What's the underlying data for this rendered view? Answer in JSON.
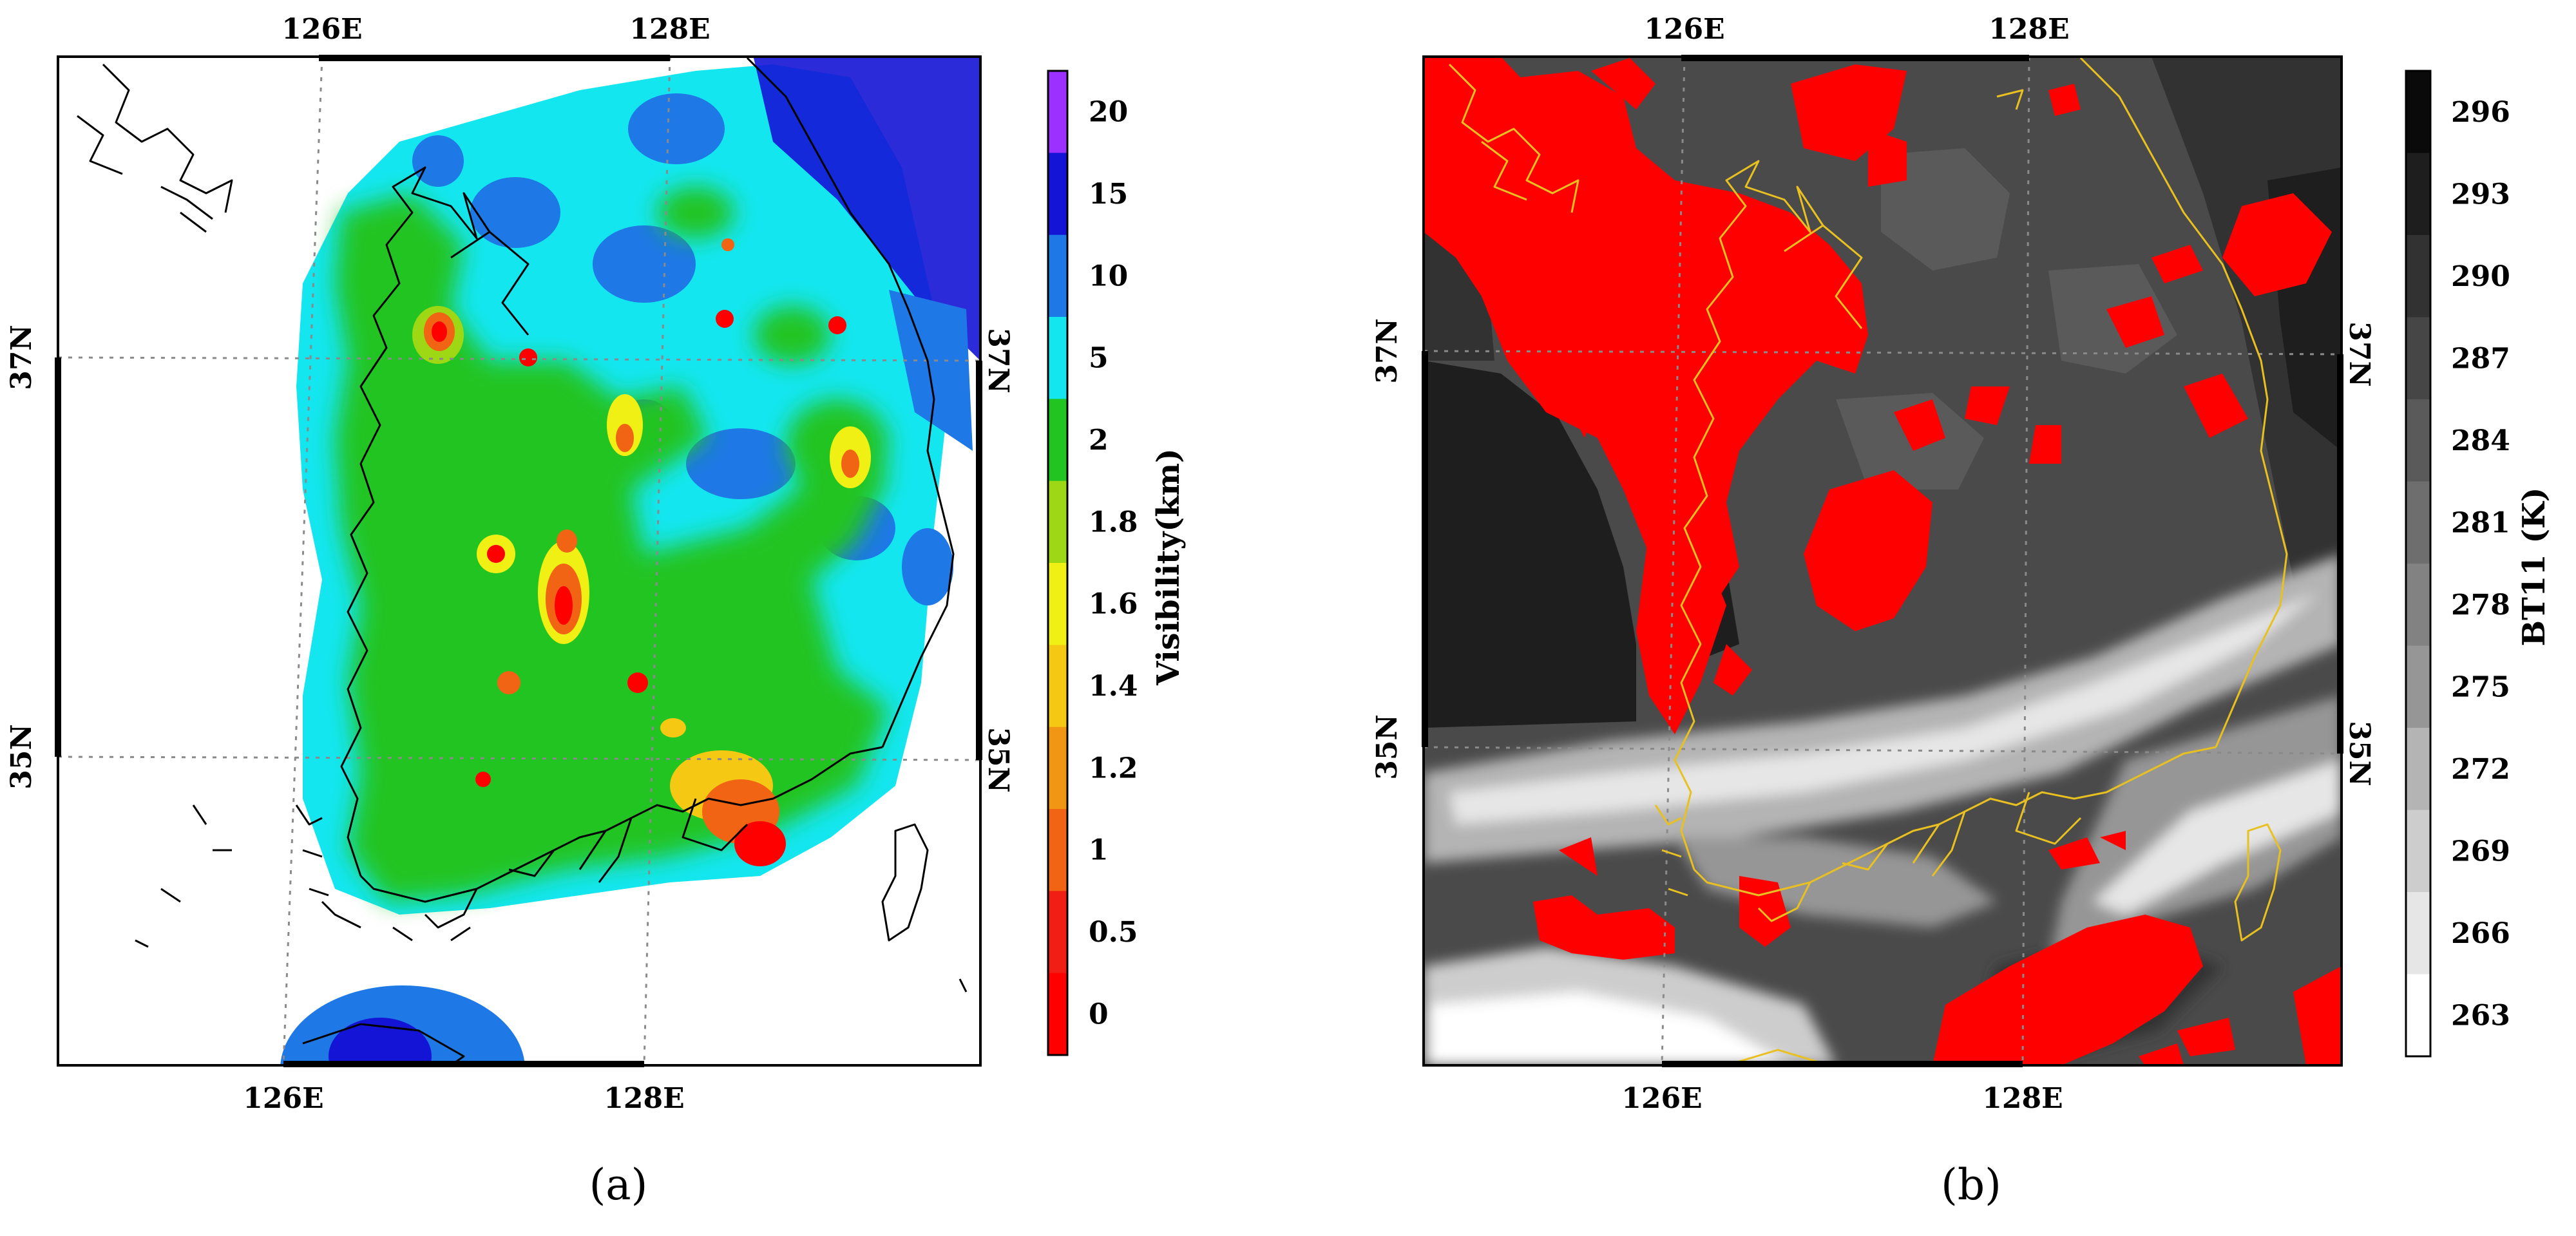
{
  "panels": [
    {
      "id": "a",
      "caption": "(a)",
      "top_ticks": [
        "126E",
        "128E"
      ],
      "bottom_ticks": [
        "126E",
        "128E"
      ],
      "left_ticks": [
        "37N",
        "35N"
      ],
      "right_ticks": [
        "37N",
        "35N"
      ],
      "colorbar": {
        "title": "Visibility(km)",
        "labels": [
          "20",
          "15",
          "10",
          "5",
          "2",
          "1.8",
          "1.6",
          "1.4",
          "1.2",
          "1",
          "0.5",
          "0"
        ],
        "colors": [
          "#9b30ff",
          "#1414d6",
          "#1e78e6",
          "#14e6f0",
          "#22c422",
          "#9ed814",
          "#f0f014",
          "#f5c814",
          "#f09614",
          "#f06414",
          "#f01e14",
          "#ff0000"
        ]
      }
    },
    {
      "id": "b",
      "caption": "(b)",
      "top_ticks": [
        "126E",
        "128E"
      ],
      "bottom_ticks": [
        "126E",
        "128E"
      ],
      "left_ticks": [
        "37N",
        "35N"
      ],
      "right_ticks": [
        "37N",
        "35N"
      ],
      "colorbar": {
        "title": "BT11 (K)",
        "labels": [
          "296",
          "293",
          "290",
          "287",
          "284",
          "281",
          "278",
          "275",
          "272",
          "269",
          "266",
          "263"
        ],
        "colors": [
          "#0a0a0a",
          "#1e1e1e",
          "#323232",
          "#464646",
          "#5a5a5a",
          "#6e6e6e",
          "#828282",
          "#969696",
          "#b4b4b4",
          "#cdcdcd",
          "#e6e6e6",
          "#ffffff"
        ]
      }
    }
  ],
  "colors": {
    "land_fill_b": "#4a4a4a",
    "fog": "#ff0000",
    "coast_b": "#e8c020",
    "coast_a": "#000000"
  }
}
